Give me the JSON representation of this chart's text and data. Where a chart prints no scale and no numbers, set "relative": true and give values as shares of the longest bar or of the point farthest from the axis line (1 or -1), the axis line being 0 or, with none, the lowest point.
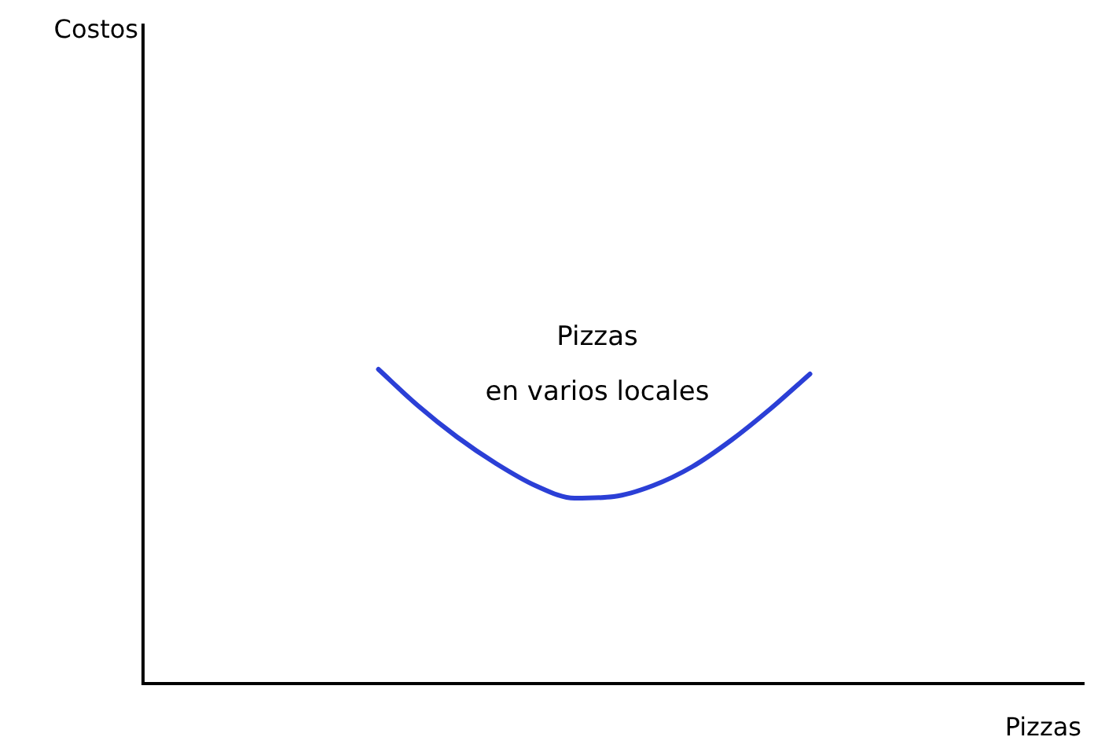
{
  "chart_data": {
    "type": "line",
    "relative": true,
    "xlabel": "Pizzas",
    "annotations": [
      "Costos",
      "Pizzas\nen varios locales"
    ],
    "marker": "none",
    "legend": false,
    "categories": [
      null,
      null,
      null,
      null,
      null,
      null,
      null,
      null,
      null,
      null,
      null,
      null,
      null,
      null,
      null,
      null,
      null,
      null,
      null,
      null,
      null,
      null,
      null,
      null,
      null
    ],
    "series": [
      {
        "color": "#2b3fd6",
        "values": [
          null,
          null,
          null,
          null,
          null,
          null,
          1.0,
          0.885,
          0.785,
          0.7,
          0.63,
          0.59,
          0.595,
          0.63,
          0.69,
          0.775,
          0.875,
          0.985,
          null,
          null,
          null,
          null,
          null,
          null,
          null
        ]
      }
    ]
  }
}
